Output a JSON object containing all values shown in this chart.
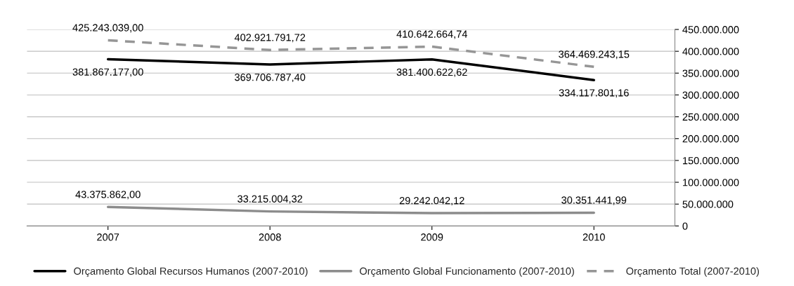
{
  "chart_data": {
    "type": "line",
    "categories": [
      "2007",
      "2008",
      "2009",
      "2010"
    ],
    "series": [
      {
        "name": "Orçamento Global Recursos Humanos (2007-2010)",
        "color": "#000000",
        "line_style": "solid",
        "values": [
          381867177.0,
          369706787.4,
          381400622.62,
          334117801.16
        ],
        "value_labels": [
          "381.867.177,00",
          "369.706.787,40",
          "381.400.622,62",
          "334.117.801,16"
        ]
      },
      {
        "name": "Orçamento Global Funcionamento (2007-2010)",
        "color": "#8c8c8c",
        "line_style": "solid",
        "values": [
          43375862.0,
          33215004.32,
          29242042.12,
          30351441.99
        ],
        "value_labels": [
          "43.375.862,00",
          "33.215.004,32",
          "29.242.042,12",
          "30.351.441,99"
        ]
      },
      {
        "name": "Orçamento Total (2007-2010)",
        "color": "#969696",
        "line_style": "dashed",
        "values": [
          425243039.0,
          402921791.72,
          410642664.74,
          364469243.15
        ],
        "value_labels": [
          "425.243.039,00",
          "402.921.791,72",
          "410.642.664,74",
          "364.469.243,15"
        ]
      }
    ],
    "ylim": [
      0,
      450000000
    ],
    "yticks": [
      0,
      {
        "value": 50000000,
        "label": "50.000.000"
      },
      {
        "value": 100000000,
        "label": "100.000.000"
      },
      {
        "value": 150000000,
        "label": "150.000.000"
      },
      {
        "value": 200000000,
        "label": "200.000.000"
      },
      {
        "value": 250000000,
        "label": "250.000.000"
      },
      {
        "value": 300000000,
        "label": "300.000.000"
      },
      {
        "value": 350000000,
        "label": "350.000.000"
      },
      {
        "value": 400000000,
        "label": "400.000.000"
      },
      {
        "value": 450000000,
        "label": "450.000.000"
      }
    ],
    "grid": "y",
    "legend": "bottom",
    "marker": "none"
  }
}
